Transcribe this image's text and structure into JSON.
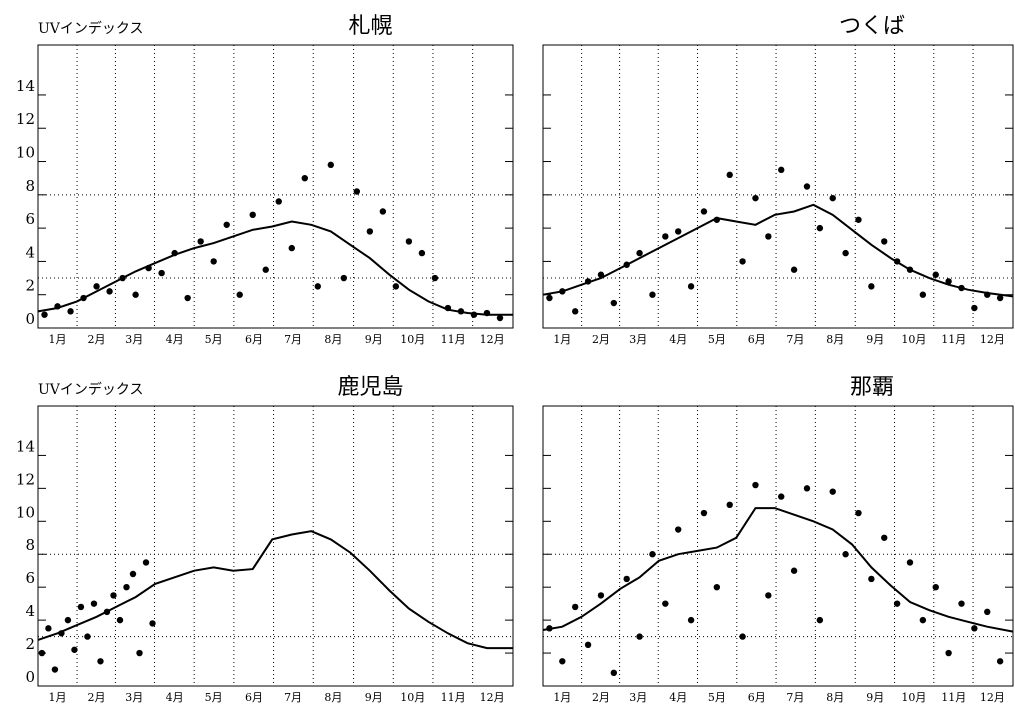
{
  "chart_data": [
    {
      "type": "scatter",
      "title": "札幌",
      "ylabel": "UVインデックス",
      "color": "#000000",
      "xlim": [
        0,
        365
      ],
      "ylim": [
        0,
        17
      ],
      "ytick_labels": true,
      "xticks": [
        {
          "value": 15,
          "label": "1月"
        },
        {
          "value": 45,
          "label": "2月"
        },
        {
          "value": 74,
          "label": "3月"
        },
        {
          "value": 105,
          "label": "4月"
        },
        {
          "value": 135,
          "label": "5月"
        },
        {
          "value": 166,
          "label": "6月"
        },
        {
          "value": 196,
          "label": "7月"
        },
        {
          "value": 227,
          "label": "8月"
        },
        {
          "value": 258,
          "label": "9月"
        },
        {
          "value": 288,
          "label": "10月"
        },
        {
          "value": 319,
          "label": "11月"
        },
        {
          "value": 349,
          "label": "12月"
        }
      ],
      "yticks": [
        0,
        2,
        4,
        6,
        8,
        10,
        12,
        14
      ],
      "hlines": [
        3,
        8
      ],
      "series": [
        {
          "kind": "scatter",
          "x": [
            5,
            15,
            25,
            35,
            45,
            55,
            65,
            75,
            85,
            95,
            105,
            115,
            125,
            135,
            145,
            155,
            165,
            175,
            185,
            195,
            205,
            215,
            225,
            235,
            245,
            255,
            265,
            275,
            285,
            295,
            305,
            315,
            325,
            335,
            345,
            355
          ],
          "values": [
            0.8,
            1.3,
            1.0,
            1.8,
            2.5,
            2.2,
            3.0,
            2.0,
            3.6,
            3.3,
            4.5,
            1.8,
            5.2,
            4.0,
            6.2,
            2.0,
            6.8,
            3.5,
            7.6,
            4.8,
            9.0,
            2.5,
            9.8,
            3.0,
            8.2,
            5.8,
            7.0,
            2.5,
            5.2,
            4.5,
            3.0,
            1.2,
            1.0,
            0.8,
            0.9,
            0.6
          ]
        },
        {
          "kind": "line",
          "x": [
            0,
            15,
            30,
            45,
            60,
            75,
            90,
            105,
            120,
            135,
            150,
            165,
            180,
            195,
            210,
            225,
            240,
            255,
            270,
            285,
            300,
            315,
            330,
            345,
            365
          ],
          "values": [
            1.0,
            1.2,
            1.6,
            2.2,
            2.8,
            3.4,
            3.9,
            4.4,
            4.8,
            5.1,
            5.5,
            5.9,
            6.1,
            6.4,
            6.2,
            5.8,
            5.0,
            4.2,
            3.2,
            2.3,
            1.6,
            1.1,
            0.9,
            0.8,
            0.8
          ]
        }
      ]
    },
    {
      "type": "scatter",
      "title": "つくば",
      "color": "#000000",
      "xlim": [
        0,
        365
      ],
      "ylim": [
        0,
        17
      ],
      "ytick_labels": false,
      "xticks": [
        {
          "value": 15,
          "label": "1月"
        },
        {
          "value": 45,
          "label": "2月"
        },
        {
          "value": 74,
          "label": "3月"
        },
        {
          "value": 105,
          "label": "4月"
        },
        {
          "value": 135,
          "label": "5月"
        },
        {
          "value": 166,
          "label": "6月"
        },
        {
          "value": 196,
          "label": "7月"
        },
        {
          "value": 227,
          "label": "8月"
        },
        {
          "value": 258,
          "label": "9月"
        },
        {
          "value": 288,
          "label": "10月"
        },
        {
          "value": 319,
          "label": "11月"
        },
        {
          "value": 349,
          "label": "12月"
        }
      ],
      "yticks": [
        0,
        2,
        4,
        6,
        8,
        10,
        12,
        14
      ],
      "hlines": [
        3,
        8
      ],
      "series": [
        {
          "kind": "scatter",
          "x": [
            5,
            15,
            25,
            35,
            45,
            55,
            65,
            75,
            85,
            95,
            105,
            115,
            125,
            135,
            145,
            155,
            165,
            175,
            185,
            195,
            205,
            215,
            225,
            235,
            245,
            255,
            265,
            275,
            285,
            295,
            305,
            315,
            325,
            335,
            345,
            355
          ],
          "values": [
            1.8,
            2.2,
            1.0,
            2.8,
            3.2,
            1.5,
            3.8,
            4.5,
            2.0,
            5.5,
            5.8,
            2.5,
            7.0,
            6.5,
            9.2,
            4.0,
            7.8,
            5.5,
            9.5,
            3.5,
            8.5,
            6.0,
            7.8,
            4.5,
            6.5,
            2.5,
            5.2,
            4.0,
            3.5,
            2.0,
            3.2,
            2.8,
            2.4,
            1.2,
            2.0,
            1.8
          ]
        },
        {
          "kind": "line",
          "x": [
            0,
            15,
            30,
            45,
            60,
            75,
            90,
            105,
            120,
            135,
            150,
            165,
            180,
            195,
            210,
            225,
            240,
            255,
            270,
            285,
            300,
            315,
            330,
            345,
            365
          ],
          "values": [
            2.0,
            2.2,
            2.6,
            3.0,
            3.6,
            4.2,
            4.8,
            5.4,
            6.0,
            6.6,
            6.4,
            6.2,
            6.8,
            7.0,
            7.4,
            6.8,
            5.9,
            5.0,
            4.2,
            3.5,
            3.0,
            2.6,
            2.3,
            2.1,
            1.9
          ]
        }
      ]
    },
    {
      "type": "scatter",
      "title": "鹿児島",
      "ylabel": "UVインデックス",
      "color": "#000000",
      "xlim": [
        0,
        365
      ],
      "ylim": [
        0,
        17
      ],
      "ytick_labels": true,
      "xticks": [
        {
          "value": 15,
          "label": "1月"
        },
        {
          "value": 45,
          "label": "2月"
        },
        {
          "value": 74,
          "label": "3月"
        },
        {
          "value": 105,
          "label": "4月"
        },
        {
          "value": 135,
          "label": "5月"
        },
        {
          "value": 166,
          "label": "6月"
        },
        {
          "value": 196,
          "label": "7月"
        },
        {
          "value": 227,
          "label": "8月"
        },
        {
          "value": 258,
          "label": "9月"
        },
        {
          "value": 288,
          "label": "10月"
        },
        {
          "value": 319,
          "label": "11月"
        },
        {
          "value": 349,
          "label": "12月"
        }
      ],
      "yticks": [
        0,
        2,
        4,
        6,
        8,
        10,
        12,
        14
      ],
      "hlines": [
        3,
        8
      ],
      "series": [
        {
          "kind": "scatter",
          "x": [
            3,
            8,
            13,
            18,
            23,
            28,
            33,
            38,
            43,
            48,
            53,
            58,
            63,
            68,
            73,
            78,
            83,
            88
          ],
          "values": [
            2.0,
            3.5,
            1.0,
            3.2,
            4.0,
            2.2,
            4.8,
            3.0,
            5.0,
            1.5,
            4.5,
            5.5,
            4.0,
            6.0,
            6.8,
            2.0,
            7.5,
            3.8
          ]
        },
        {
          "kind": "line",
          "x": [
            0,
            15,
            30,
            45,
            60,
            75,
            90,
            105,
            120,
            135,
            150,
            165,
            180,
            195,
            210,
            225,
            240,
            255,
            270,
            285,
            300,
            315,
            330,
            345,
            365
          ],
          "values": [
            2.8,
            3.2,
            3.7,
            4.2,
            4.8,
            5.4,
            6.2,
            6.6,
            7.0,
            7.2,
            7.0,
            7.1,
            8.9,
            9.2,
            9.4,
            8.9,
            8.1,
            7.0,
            5.8,
            4.7,
            3.9,
            3.2,
            2.6,
            2.3,
            2.3
          ]
        }
      ]
    },
    {
      "type": "scatter",
      "title": "那覇",
      "color": "#000000",
      "xlim": [
        0,
        365
      ],
      "ylim": [
        0,
        17
      ],
      "ytick_labels": false,
      "xticks": [
        {
          "value": 15,
          "label": "1月"
        },
        {
          "value": 45,
          "label": "2月"
        },
        {
          "value": 74,
          "label": "3月"
        },
        {
          "value": 105,
          "label": "4月"
        },
        {
          "value": 135,
          "label": "5月"
        },
        {
          "value": 166,
          "label": "6月"
        },
        {
          "value": 196,
          "label": "7月"
        },
        {
          "value": 227,
          "label": "8月"
        },
        {
          "value": 258,
          "label": "9月"
        },
        {
          "value": 288,
          "label": "10月"
        },
        {
          "value": 319,
          "label": "11月"
        },
        {
          "value": 349,
          "label": "12月"
        }
      ],
      "yticks": [
        0,
        2,
        4,
        6,
        8,
        10,
        12,
        14
      ],
      "hlines": [
        3,
        8
      ],
      "series": [
        {
          "kind": "scatter",
          "x": [
            5,
            15,
            25,
            35,
            45,
            55,
            65,
            75,
            85,
            95,
            105,
            115,
            125,
            135,
            145,
            155,
            165,
            175,
            185,
            195,
            205,
            215,
            225,
            235,
            245,
            255,
            265,
            275,
            285,
            295,
            305,
            315,
            325,
            335,
            345,
            355
          ],
          "values": [
            3.5,
            1.5,
            4.8,
            2.5,
            5.5,
            0.8,
            6.5,
            3.0,
            8.0,
            5.0,
            9.5,
            4.0,
            10.5,
            6.0,
            11.0,
            3.0,
            12.2,
            5.5,
            11.5,
            7.0,
            12.0,
            4.0,
            11.8,
            8.0,
            10.5,
            6.5,
            9.0,
            5.0,
            7.5,
            4.0,
            6.0,
            2.0,
            5.0,
            3.5,
            4.5,
            1.5
          ]
        },
        {
          "kind": "line",
          "x": [
            0,
            15,
            30,
            45,
            60,
            75,
            90,
            105,
            120,
            135,
            150,
            165,
            180,
            195,
            210,
            225,
            240,
            255,
            270,
            285,
            300,
            315,
            330,
            345,
            365
          ],
          "values": [
            3.4,
            3.6,
            4.2,
            5.0,
            5.9,
            6.6,
            7.6,
            8.0,
            8.2,
            8.4,
            9.0,
            10.8,
            10.8,
            10.4,
            10.0,
            9.5,
            8.6,
            7.2,
            6.1,
            5.1,
            4.6,
            4.2,
            3.9,
            3.6,
            3.3
          ]
        }
      ]
    }
  ]
}
